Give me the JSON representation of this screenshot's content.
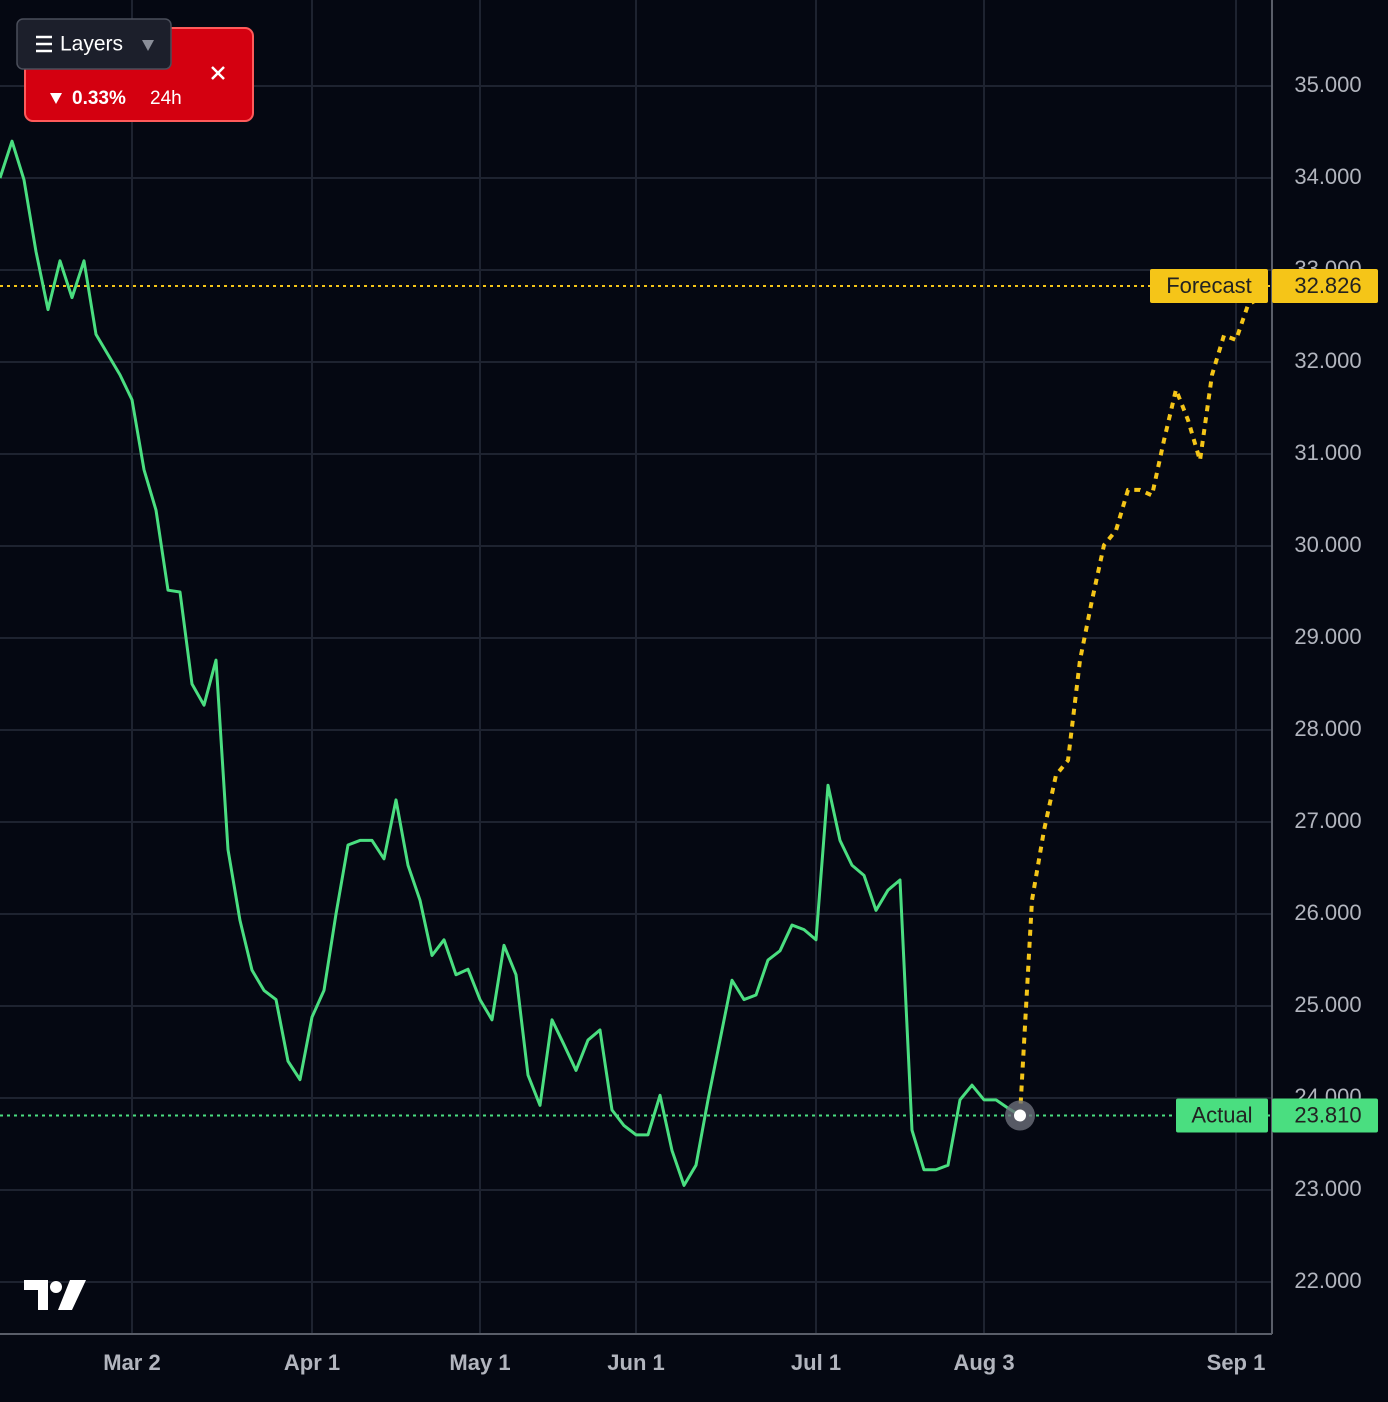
{
  "chart_data": {
    "type": "line",
    "categories": [
      null,
      null,
      null,
      null,
      null,
      null,
      null,
      null,
      null,
      null,
      null,
      "Mar 2",
      null,
      null,
      null,
      null,
      null,
      null,
      null,
      null,
      null,
      null,
      null,
      null,
      null,
      null,
      "Apr 1",
      null,
      null,
      null,
      null,
      null,
      null,
      null,
      null,
      null,
      null,
      null,
      null,
      null,
      "May 1",
      null,
      null,
      null,
      null,
      null,
      null,
      null,
      null,
      null,
      null,
      null,
      null,
      "Jun 1",
      null,
      null,
      null,
      null,
      null,
      null,
      null,
      null,
      null,
      null,
      null,
      null,
      null,
      null,
      "Jul 1",
      null,
      null,
      null,
      null,
      null,
      null,
      null,
      null,
      null,
      null,
      null,
      null,
      null,
      "Aug 3",
      null,
      null,
      null,
      null,
      null,
      null,
      null,
      null,
      null,
      null,
      null,
      null,
      null,
      null,
      null,
      null,
      null,
      null,
      null,
      null,
      "Sep 1",
      null,
      null
    ],
    "series": [
      {
        "color": "#4ade80",
        "dashed": false,
        "values": [
          34.0,
          34.4,
          33.98,
          33.2,
          32.57,
          33.1,
          32.7,
          33.1,
          32.3,
          32.08,
          31.86,
          31.59,
          30.83,
          30.39,
          29.52,
          29.5,
          28.5,
          28.27,
          28.76,
          26.7,
          25.93,
          25.39,
          25.17,
          25.07,
          24.4,
          24.2,
          24.88,
          25.17,
          26.0,
          26.75,
          26.8,
          26.8,
          26.6,
          27.24,
          26.53,
          26.15,
          25.55,
          25.72,
          25.34,
          25.4,
          25.07,
          24.85,
          25.66,
          25.34,
          24.25,
          23.92,
          24.85,
          24.58,
          24.3,
          24.63,
          24.74,
          23.87,
          23.7,
          23.6,
          23.6,
          24.03,
          23.43,
          23.05,
          23.27,
          23.98,
          24.63,
          25.28,
          25.07,
          25.12,
          25.5,
          25.6,
          25.88,
          25.83,
          25.72,
          27.4,
          26.8,
          26.53,
          26.42,
          26.04,
          26.26,
          26.37,
          23.65,
          23.22,
          23.22,
          23.27,
          23.98,
          24.14,
          23.98,
          23.98,
          23.89,
          23.81,
          null,
          null,
          null,
          null,
          null,
          null,
          null,
          null,
          null,
          null,
          null,
          null,
          null,
          null,
          null,
          null,
          null,
          null,
          null,
          null
        ]
      },
      {
        "color": "#f5c518",
        "dashed": true,
        "values": [
          null,
          null,
          null,
          null,
          null,
          null,
          null,
          null,
          null,
          null,
          null,
          null,
          null,
          null,
          null,
          null,
          null,
          null,
          null,
          null,
          null,
          null,
          null,
          null,
          null,
          null,
          null,
          null,
          null,
          null,
          null,
          null,
          null,
          null,
          null,
          null,
          null,
          null,
          null,
          null,
          null,
          null,
          null,
          null,
          null,
          null,
          null,
          null,
          null,
          null,
          null,
          null,
          null,
          null,
          null,
          null,
          null,
          null,
          null,
          null,
          null,
          null,
          null,
          null,
          null,
          null,
          null,
          null,
          null,
          null,
          null,
          null,
          null,
          null,
          null,
          null,
          null,
          null,
          null,
          null,
          null,
          null,
          null,
          null,
          null,
          23.81,
          26.15,
          26.91,
          27.51,
          27.67,
          28.76,
          29.41,
          30.01,
          30.17,
          30.61,
          30.61,
          30.55,
          31.15,
          31.7,
          31.37,
          30.93,
          31.86,
          32.29,
          32.24,
          32.62,
          32.7
        ]
      }
    ],
    "ylim": [
      21.435,
      35.935
    ],
    "yticks": [
      {
        "value": 22,
        "label": "22.000"
      },
      {
        "value": 23,
        "label": "23.000"
      },
      {
        "value": 24,
        "label": "24.000"
      },
      {
        "value": 25,
        "label": "25.000"
      },
      {
        "value": 26,
        "label": "26.000"
      },
      {
        "value": 27,
        "label": "27.000"
      },
      {
        "value": 28,
        "label": "28.000"
      },
      {
        "value": 29,
        "label": "29.000"
      },
      {
        "value": 30,
        "label": "30.000"
      },
      {
        "value": 31,
        "label": "31.000"
      },
      {
        "value": 32,
        "label": "32.000"
      },
      {
        "value": 33,
        "label": "33.000"
      },
      {
        "value": 34,
        "label": "34.000"
      },
      {
        "value": 35,
        "label": "35.000"
      }
    ],
    "grid": true,
    "price_lines": [
      {
        "label": "Forecast",
        "value": 32.826,
        "color": "#f5c518"
      },
      {
        "label": "Actual",
        "value": 23.81,
        "value_label": "23.810",
        "color": "#4ade80"
      }
    ]
  },
  "ui": {
    "layers_button": "Layers",
    "ticker": {
      "change": "0.33%",
      "period": "24h"
    }
  }
}
